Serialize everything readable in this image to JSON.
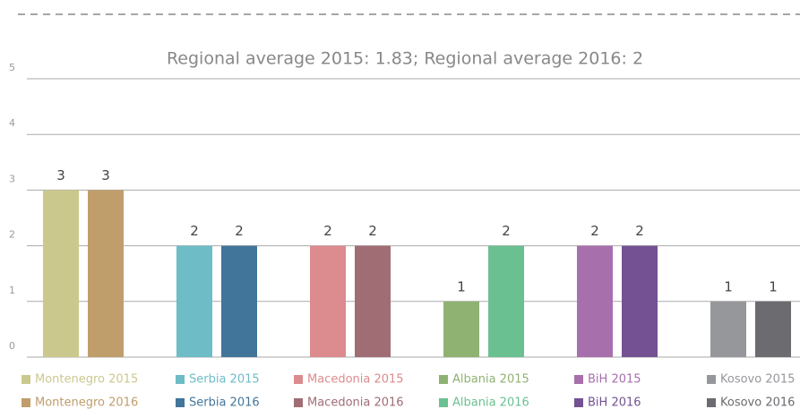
{
  "chart_data": {
    "type": "bar",
    "subtitle": "Regional average 2015: 1.83; Regional average 2016: 2",
    "ylim": [
      0,
      5
    ],
    "yticks": [
      0,
      1,
      2,
      3,
      4,
      5
    ],
    "grid": true,
    "groups": [
      {
        "bars": [
          {
            "name": "Montenegro 2015",
            "color": "#cbc88e",
            "value": 3
          },
          {
            "name": "Montenegro 2016",
            "color": "#bf9e6c",
            "value": 3
          }
        ]
      },
      {
        "bars": [
          {
            "name": "Serbia 2015",
            "color": "#6dbcc6",
            "value": 2
          },
          {
            "name": "Serbia 2016",
            "color": "#42759a",
            "value": 2
          }
        ]
      },
      {
        "bars": [
          {
            "name": "Macedonia 2015",
            "color": "#dc8b8f",
            "value": 2
          },
          {
            "name": "Macedonia 2016",
            "color": "#a06d75",
            "value": 2
          }
        ]
      },
      {
        "bars": [
          {
            "name": "Albania 2015",
            "color": "#8fb273",
            "value": 1
          },
          {
            "name": "Albania 2016",
            "color": "#6bc091",
            "value": 2
          }
        ]
      },
      {
        "bars": [
          {
            "name": "BiH 2015",
            "color": "#a86fad",
            "value": 2
          },
          {
            "name": "BiH 2016",
            "color": "#735193",
            "value": 2
          }
        ]
      },
      {
        "bars": [
          {
            "name": "Kosovo 2015",
            "color": "#96979b",
            "value": 1
          },
          {
            "name": "Kosovo 2016",
            "color": "#6b6b70",
            "value": 1
          }
        ]
      }
    ]
  }
}
